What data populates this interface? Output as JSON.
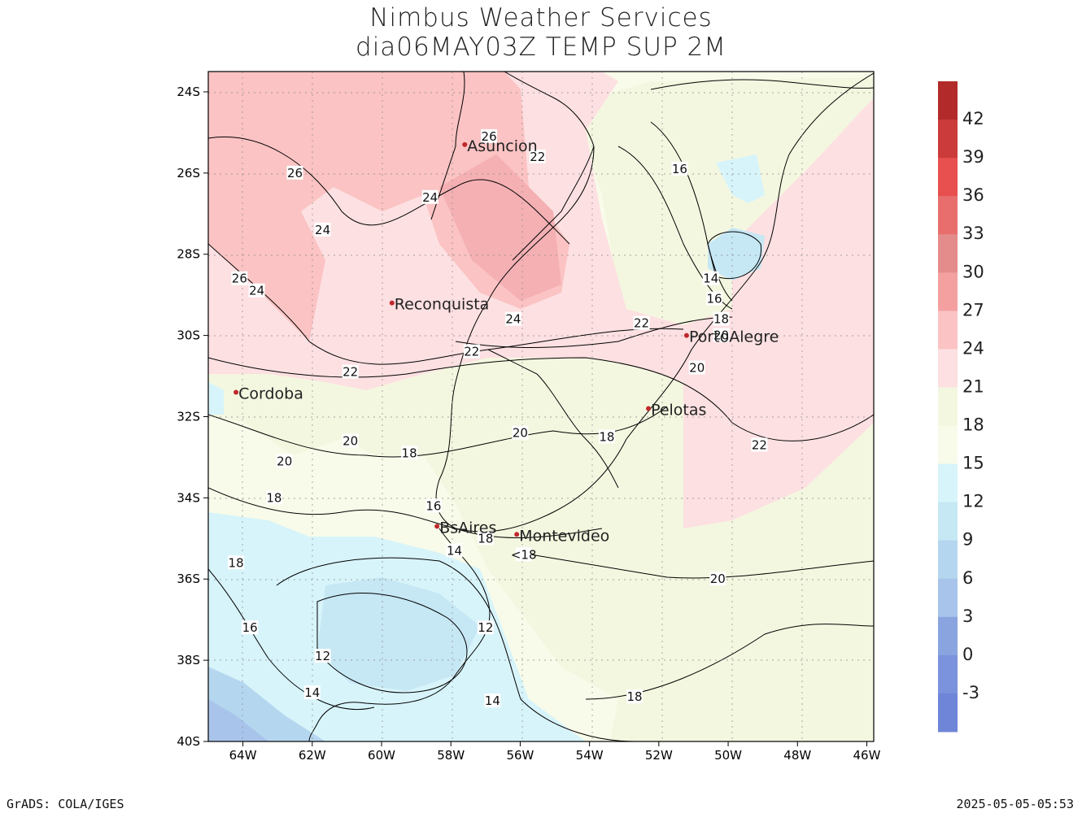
{
  "title_line1": "Nimbus Weather Services",
  "title_line2": "dia06MAY03Z TEMP SUP 2M",
  "footer_left": "GrADS: COLA/IGES",
  "footer_right": "2025-05-05-05:53",
  "lat_ticks": [
    "24S",
    "26S",
    "28S",
    "30S",
    "32S",
    "34S",
    "36S",
    "38S",
    "40S"
  ],
  "lon_ticks": [
    "64W",
    "62W",
    "60W",
    "58W",
    "56W",
    "54W",
    "52W",
    "50W",
    "48W",
    "46W"
  ],
  "colorbar": {
    "labels": [
      "42",
      "39",
      "36",
      "33",
      "30",
      "27",
      "24",
      "21",
      "18",
      "15",
      "12",
      "9",
      "6",
      "3",
      "0",
      "-3"
    ],
    "colors": [
      "#b22a2a",
      "#cc3b3b",
      "#e84f4f",
      "#e86e6e",
      "#e48b8b",
      "#f4a0a0",
      "#fbc3c3",
      "#fde0e2",
      "#f4f7e0",
      "#f8fbe9",
      "#d7f4fa",
      "#c6e7f4",
      "#b5d6ef",
      "#a9c4ea",
      "#8aa4e0",
      "#7b93dc",
      "#6f85d8"
    ]
  },
  "cities": [
    {
      "name": "Asuncion",
      "lon": -57.6,
      "lat": -25.3
    },
    {
      "name": "Reconquista",
      "lon": -59.7,
      "lat": -29.2
    },
    {
      "name": "PortoAlegre",
      "lon": -51.2,
      "lat": -30.0
    },
    {
      "name": "Cordoba",
      "lon": -64.2,
      "lat": -31.4
    },
    {
      "name": "Pelotas",
      "lon": -52.3,
      "lat": -31.8
    },
    {
      "name": "BsAires",
      "lon": -58.4,
      "lat": -34.7
    },
    {
      "name": "Montevideo",
      "lon": -56.1,
      "lat": -34.9
    }
  ],
  "contour_labels": [
    {
      "t": "26",
      "lon": -56.9,
      "lat": -25.1
    },
    {
      "t": "22",
      "lon": -55.5,
      "lat": -25.6
    },
    {
      "t": "26",
      "lon": -62.5,
      "lat": -26.0
    },
    {
      "t": "24",
      "lon": -58.6,
      "lat": -26.6
    },
    {
      "t": "24",
      "lon": -61.7,
      "lat": -27.4
    },
    {
      "t": "16",
      "lon": -51.4,
      "lat": -25.9
    },
    {
      "t": "26",
      "lon": -64.1,
      "lat": -28.6
    },
    {
      "t": "24",
      "lon": -63.6,
      "lat": -28.9
    },
    {
      "t": "14",
      "lon": -50.5,
      "lat": -28.6
    },
    {
      "t": "16",
      "lon": -50.4,
      "lat": -29.1
    },
    {
      "t": "18",
      "lon": -50.2,
      "lat": -29.6
    },
    {
      "t": "24",
      "lon": -56.2,
      "lat": -29.6
    },
    {
      "t": "22",
      "lon": -52.5,
      "lat": -29.7
    },
    {
      "t": "22",
      "lon": -57.4,
      "lat": -30.4
    },
    {
      "t": "20",
      "lon": -50.2,
      "lat": -30.0
    },
    {
      "t": "22",
      "lon": -60.9,
      "lat": -30.9
    },
    {
      "t": "20",
      "lon": -50.9,
      "lat": -30.8
    },
    {
      "t": "20",
      "lon": -56.0,
      "lat": -32.4
    },
    {
      "t": "18",
      "lon": -53.5,
      "lat": -32.5
    },
    {
      "t": "22",
      "lon": -49.1,
      "lat": -32.7
    },
    {
      "t": "20",
      "lon": -60.9,
      "lat": -32.6
    },
    {
      "t": "18",
      "lon": -59.2,
      "lat": -32.9
    },
    {
      "t": "20",
      "lon": -62.8,
      "lat": -33.1
    },
    {
      "t": "18",
      "lon": -63.1,
      "lat": -34.0
    },
    {
      "t": "16",
      "lon": -58.5,
      "lat": -34.2
    },
    {
      "t": "18",
      "lon": -57.0,
      "lat": -35.0
    },
    {
      "t": "<18",
      "lon": -55.9,
      "lat": -35.4
    },
    {
      "t": "14",
      "lon": -57.9,
      "lat": -35.3
    },
    {
      "t": "18",
      "lon": -64.2,
      "lat": -35.6
    },
    {
      "t": "20",
      "lon": -50.3,
      "lat": -36.0
    },
    {
      "t": "16",
      "lon": -63.8,
      "lat": -37.2
    },
    {
      "t": "12",
      "lon": -57.0,
      "lat": -37.2
    },
    {
      "t": "12",
      "lon": -61.7,
      "lat": -37.9
    },
    {
      "t": "18",
      "lon": -52.7,
      "lat": -38.9
    },
    {
      "t": "14",
      "lon": -62.0,
      "lat": -38.8
    },
    {
      "t": "14",
      "lon": -56.8,
      "lat": -39.0
    }
  ]
}
